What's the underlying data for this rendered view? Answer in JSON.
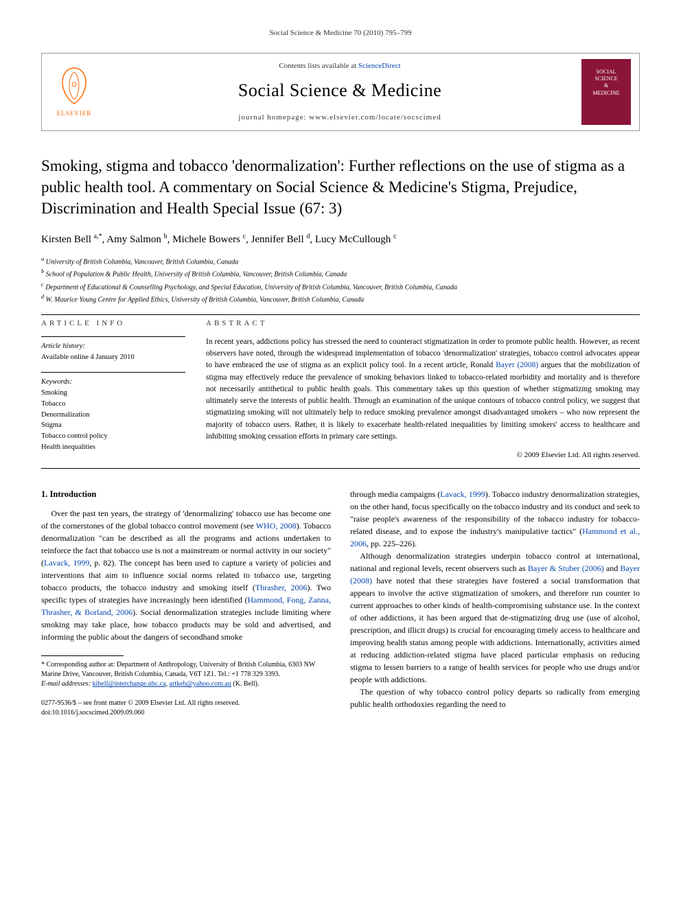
{
  "page_header": "Social Science & Medicine 70 (2010) 795–799",
  "banner": {
    "contents_prefix": "Contents lists available at ",
    "sciencedirect": "ScienceDirect",
    "journal_name": "Social Science & Medicine",
    "homepage_prefix": "journal homepage: ",
    "homepage_url": "www.elsevier.com/locate/socscimed",
    "elsevier_label": "ELSEVIER",
    "cover_text_1": "SOCIAL",
    "cover_text_2": "SCIENCE",
    "cover_text_3": "&",
    "cover_text_4": "MEDICINE",
    "colors": {
      "border": "#999999",
      "elsevier_orange": "#ff6600",
      "link": "#0645ad",
      "cover_bg": "#8a1538"
    }
  },
  "title": "Smoking, stigma and tobacco 'denormalization': Further reflections on the use of stigma as a public health tool. A commentary on Social Science & Medicine's Stigma, Prejudice, Discrimination and Health Special Issue (67: 3)",
  "authors_html": "Kirsten Bell <sup>a,*</sup>, Amy Salmon <sup>b</sup>, Michele Bowers <sup>c</sup>, Jennifer Bell <sup>d</sup>, Lucy McCullough <sup>c</sup>",
  "affiliations": [
    "a University of British Columbia, Vancouver, British Columbia, Canada",
    "b School of Population & Public Health, University of British Columbia, Vancouver, British Columbia, Canada",
    "c Department of Educational & Counselling Psychology, and Special Education, University of British Columbia, Vancouver, British Columbia, Canada",
    "d W. Maurice Young Centre for Applied Ethics, University of British Columbia, Vancouver, British Columbia, Canada"
  ],
  "article_info": {
    "heading": "ARTICLE INFO",
    "history_label": "Article history:",
    "history_value": "Available online 4 January 2010",
    "keywords_label": "Keywords:",
    "keywords": [
      "Smoking",
      "Tobacco",
      "Denormalization",
      "Stigma",
      "Tobacco control policy",
      "Health inequalities"
    ]
  },
  "abstract": {
    "heading": "ABSTRACT",
    "text": "In recent years, addictions policy has stressed the need to counteract stigmatization in order to promote public health. However, as recent observers have noted, through the widespread implementation of tobacco 'denormalization' strategies, tobacco control advocates appear to have embraced the use of stigma as an explicit policy tool. In a recent article, Ronald Bayer (2008) argues that the mobilization of stigma may effectively reduce the prevalence of smoking behaviors linked to tobacco-related morbidity and mortality and is therefore not necessarily antithetical to public health goals. This commentary takes up this question of whether stigmatizing smoking may ultimately serve the interests of public health. Through an examination of the unique contours of tobacco control policy, we suggest that stigmatizing smoking will not ultimately help to reduce smoking prevalence amongst disadvantaged smokers – who now represent the majority of tobacco users. Rather, it is likely to exacerbate health-related inequalities by limiting smokers' access to healthcare and inhibiting smoking cessation efforts in primary care settings.",
    "bayer_link": "Bayer (2008)",
    "copyright": "© 2009 Elsevier Ltd. All rights reserved."
  },
  "body": {
    "section_heading": "1. Introduction",
    "col1_p1_a": "Over the past ten years, the strategy of 'denormalizing' tobacco use has become one of the cornerstones of the global tobacco control movement (see ",
    "col1_link1": "WHO, 2008",
    "col1_p1_b": "). Tobacco denormalization \"can be described as all the programs and actions undertaken to reinforce the fact that tobacco use is not a mainstream or normal activity in our society\" (",
    "col1_link2": "Lavack, 1999",
    "col1_p1_c": ", p. 82). The concept has been used to capture a variety of policies and interventions that aim to influence social norms related to tobacco use, targeting tobacco products, the tobacco industry and smoking itself (",
    "col1_link3": "Thrasher, 2006",
    "col1_p1_d": "). Two specific types of strategies have increasingly been identified (",
    "col1_link4": "Hammond, Fong, Zanna, Thrasher, & Borland, 2006",
    "col1_p1_e": "). Social denormalization strategies include limiting where smoking may take place, how tobacco products may be sold and advertised, and informing the public about the dangers of secondhand smoke",
    "col2_p1_a": "through media campaigns (",
    "col2_link1": "Lavack, 1999",
    "col2_p1_b": "). Tobacco industry denormalization strategies, on the other hand, focus specifically on the tobacco industry and its conduct and seek to \"raise people's awareness of the responsibility of the tobacco industry for tobacco-related disease, and to expose the industry's manipulative tactics\" (",
    "col2_link2": "Hammond et al., 2006",
    "col2_p1_c": ", pp. 225–226).",
    "col2_p2_a": "Although denormalization strategies underpin tobacco control at international, national and regional levels, recent observers such as ",
    "col2_link3": "Bayer & Stuber (2006)",
    "col2_p2_b": " and ",
    "col2_link4": "Bayer (2008)",
    "col2_p2_c": " have noted that these strategies have fostered a social transformation that appears to involve the active stigmatization of smokers, and therefore run counter to current approaches to other kinds of health-compromising substance use. In the context of other addictions, it has been argued that de-stigmatizing drug use (use of alcohol, prescription, and illicit drugs) is crucial for encouraging timely access to healthcare and improving health status among people with addictions. Internationally, activities aimed at reducing addiction-related stigma have placed particular emphasis on reducing stigma to lessen barriers to a range of health services for people who use drugs and/or people with addictions.",
    "col2_p3": "The question of why tobacco control policy departs so radically from emerging public health orthodoxies regarding the need to"
  },
  "footnotes": {
    "corresponding": "* Corresponding author at: Department of Anthropology, University of British Columbia, 6303 NW Marine Drive, Vancouver, British Columbia, Canada, V6T 1Z1. Tel.: +1 778 329 3393.",
    "email_label": "E-mail addresses: ",
    "email1": "kibell@interchange.ubc.ca",
    "email_sep": ", ",
    "email2": "artkeb@yahoo.com.au",
    "email_suffix": " (K. Bell)."
  },
  "doi": {
    "line1": "0277-9536/$ – see front matter © 2009 Elsevier Ltd. All rights reserved.",
    "line2": "doi:10.1016/j.socscimed.2009.09.060"
  }
}
